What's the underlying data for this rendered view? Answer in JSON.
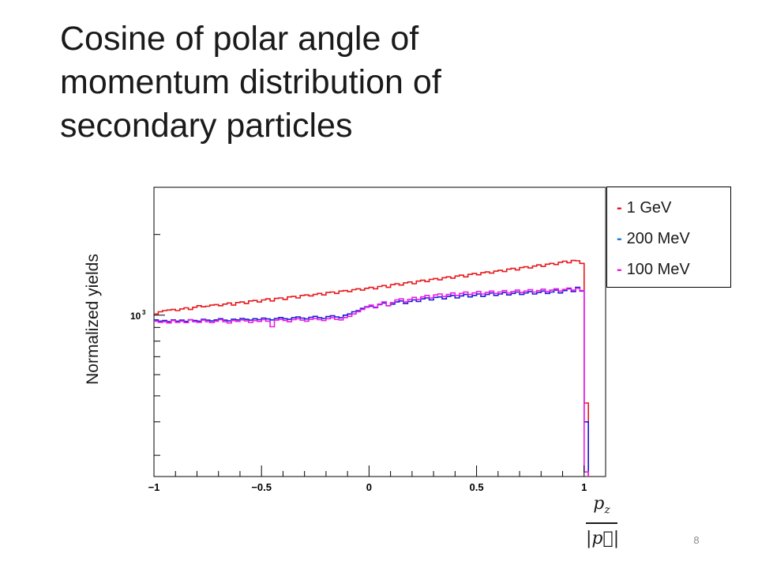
{
  "slide": {
    "title_lines": [
      "Cosine of polar angle of",
      "momentum distribution of",
      "secondary particles"
    ],
    "page_number": "8"
  },
  "chart_data": {
    "type": "line",
    "drawstyle": "steps-mid",
    "ylabel": "Normalized yields",
    "xlabel_numerator": "p",
    "xlabel_numerator_sub": "z",
    "xlabel_denominator": "|p⃗|",
    "xlim": [
      -1,
      1.1
    ],
    "xticks": [
      -1,
      -0.5,
      0,
      0.5,
      1
    ],
    "xtick_labels": [
      "−1",
      "−0.5",
      "0",
      "0.5",
      "1"
    ],
    "yscale": "log",
    "ylim": [
      250,
      3000
    ],
    "ytick_label": "10",
    "ytick_label_exp": "3",
    "ytick_label_value": 1000,
    "legend_position": "top-right, outside plot",
    "bin_width": 0.02,
    "x": [
      -0.99,
      -0.97,
      -0.95,
      -0.93,
      -0.91,
      -0.89,
      -0.87,
      -0.85,
      -0.83,
      -0.81,
      -0.79,
      -0.77,
      -0.75,
      -0.73,
      -0.71,
      -0.69,
      -0.67,
      -0.65,
      -0.63,
      -0.61,
      -0.59,
      -0.57,
      -0.55,
      -0.53,
      -0.51,
      -0.49,
      -0.47,
      -0.45,
      -0.43,
      -0.41,
      -0.39,
      -0.37,
      -0.35,
      -0.33,
      -0.31,
      -0.29,
      -0.27,
      -0.25,
      -0.23,
      -0.21,
      -0.19,
      -0.17,
      -0.15,
      -0.13,
      -0.11,
      -0.09,
      -0.07,
      -0.05,
      -0.03,
      -0.01,
      0.01,
      0.03,
      0.05,
      0.07,
      0.09,
      0.11,
      0.13,
      0.15,
      0.17,
      0.19,
      0.21,
      0.23,
      0.25,
      0.27,
      0.29,
      0.31,
      0.33,
      0.35,
      0.37,
      0.39,
      0.41,
      0.43,
      0.45,
      0.47,
      0.49,
      0.51,
      0.53,
      0.55,
      0.57,
      0.59,
      0.61,
      0.63,
      0.65,
      0.67,
      0.69,
      0.71,
      0.73,
      0.75,
      0.77,
      0.79,
      0.81,
      0.83,
      0.85,
      0.87,
      0.89,
      0.91,
      0.93,
      0.95,
      0.97,
      0.99,
      1.01
    ],
    "series": [
      {
        "name": "1 GeV",
        "color": "#e8181c",
        "values": [
          1010,
          1030,
          1040,
          1045,
          1050,
          1040,
          1055,
          1065,
          1050,
          1070,
          1085,
          1075,
          1080,
          1090,
          1095,
          1085,
          1100,
          1110,
          1090,
          1115,
          1120,
          1105,
          1130,
          1135,
          1120,
          1140,
          1150,
          1130,
          1155,
          1160,
          1145,
          1170,
          1175,
          1160,
          1185,
          1190,
          1180,
          1195,
          1205,
          1190,
          1215,
          1220,
          1205,
          1230,
          1235,
          1225,
          1245,
          1255,
          1240,
          1260,
          1270,
          1255,
          1280,
          1290,
          1270,
          1300,
          1310,
          1295,
          1320,
          1330,
          1310,
          1340,
          1350,
          1335,
          1360,
          1370,
          1355,
          1380,
          1390,
          1375,
          1400,
          1410,
          1390,
          1420,
          1430,
          1415,
          1440,
          1450,
          1435,
          1460,
          1470,
          1455,
          1485,
          1495,
          1475,
          1505,
          1515,
          1500,
          1525,
          1540,
          1520,
          1550,
          1560,
          1545,
          1575,
          1590,
          1570,
          1600,
          1595,
          1560,
          470
        ]
      },
      {
        "name": "200 MeV",
        "color": "#1a1ad6",
        "values": [
          960,
          950,
          955,
          945,
          960,
          950,
          958,
          948,
          962,
          955,
          950,
          965,
          958,
          952,
          960,
          970,
          958,
          952,
          966,
          960,
          972,
          965,
          958,
          970,
          962,
          975,
          968,
          960,
          972,
          980,
          970,
          965,
          978,
          985,
          975,
          968,
          982,
          990,
          978,
          972,
          988,
          995,
          985,
          978,
          1000,
          1010,
          1030,
          1040,
          1060,
          1075,
          1080,
          1070,
          1095,
          1110,
          1085,
          1100,
          1120,
          1130,
          1105,
          1125,
          1140,
          1125,
          1150,
          1160,
          1140,
          1165,
          1170,
          1150,
          1175,
          1185,
          1160,
          1180,
          1195,
          1170,
          1185,
          1200,
          1175,
          1195,
          1210,
          1185,
          1200,
          1215,
          1190,
          1205,
          1220,
          1195,
          1210,
          1225,
          1200,
          1215,
          1230,
          1205,
          1220,
          1240,
          1210,
          1235,
          1255,
          1225,
          1270,
          1230,
          400
        ]
      },
      {
        "name": "100 MeV",
        "color": "#e81ce8",
        "values": [
          950,
          940,
          945,
          935,
          955,
          940,
          950,
          938,
          960,
          945,
          940,
          958,
          945,
          938,
          950,
          962,
          945,
          935,
          955,
          948,
          960,
          952,
          940,
          955,
          948,
          962,
          950,
          905,
          958,
          965,
          955,
          945,
          962,
          970,
          958,
          950,
          965,
          972,
          962,
          955,
          970,
          978,
          965,
          960,
          980,
          990,
          1010,
          1030,
          1050,
          1070,
          1090,
          1065,
          1100,
          1120,
          1085,
          1115,
          1140,
          1150,
          1120,
          1145,
          1165,
          1145,
          1170,
          1185,
          1160,
          1190,
          1200,
          1175,
          1195,
          1210,
          1185,
          1205,
          1220,
          1195,
          1210,
          1225,
          1200,
          1215,
          1230,
          1205,
          1220,
          1235,
          1210,
          1225,
          1240,
          1215,
          1230,
          1245,
          1220,
          1235,
          1250,
          1225,
          1240,
          1255,
          1230,
          1248,
          1262,
          1240,
          1260,
          1235,
          260
        ]
      }
    ]
  }
}
